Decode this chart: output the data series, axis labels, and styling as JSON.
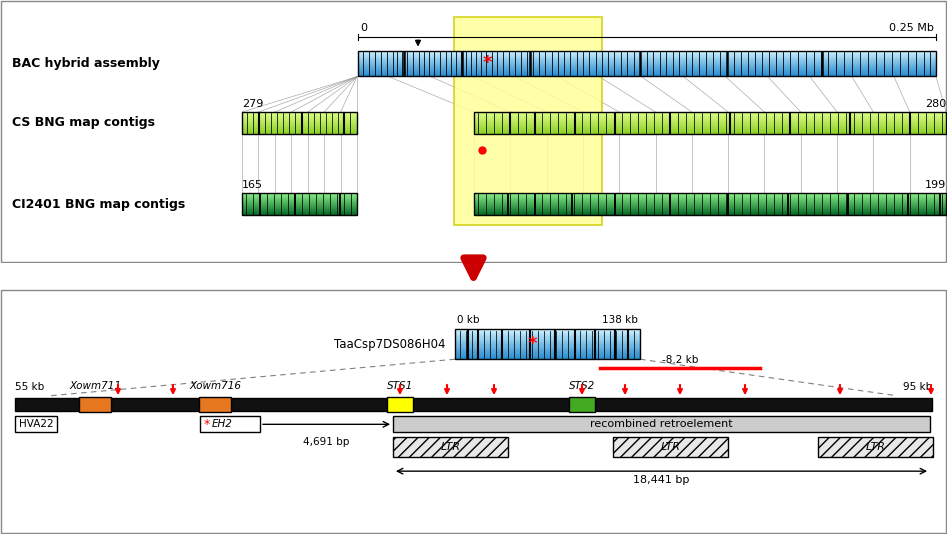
{
  "top_panel": {
    "bac_label": "BAC hybrid assembly",
    "cs_label": "CS BNG map contigs",
    "ci_label": "CI2401 BNG map contigs",
    "scale_0": "0",
    "scale_025": "0.25 Mb",
    "cs_left_num": "279",
    "cs_right_num": "280",
    "ci_left_num": "165",
    "ci_right_num": "199",
    "bac_color": "#5BB8E8",
    "cs_color_left": "#B8E060",
    "cs_color_right": "#B8E060",
    "ci_color": "#00BB55",
    "yellow_box": "#FFFF88"
  },
  "bottom_panel": {
    "bac_label": "TaaCsp7DS086H04",
    "scale_0": "0 kb",
    "scale_138": "138 kb",
    "kb_left": "55 kb",
    "kb_right": "95 kb",
    "marker1": "Xowm711",
    "marker2": "Xowm716",
    "sts1": "STS1",
    "sts2": "STS2",
    "hva_label": "HVA22",
    "eh2_label": "*EH2",
    "retro_label": "recombined retroelement",
    "ltr_label": "LTR",
    "dist1": "4,691 bp",
    "dist2": "18,441 bp",
    "dist3": "-8.2 kb",
    "orange_color": "#E87820",
    "yellow_color": "#FFFF00",
    "green_color": "#44AA22",
    "gray_color": "#CCCCCC",
    "track_color": "#1A1A1A"
  }
}
